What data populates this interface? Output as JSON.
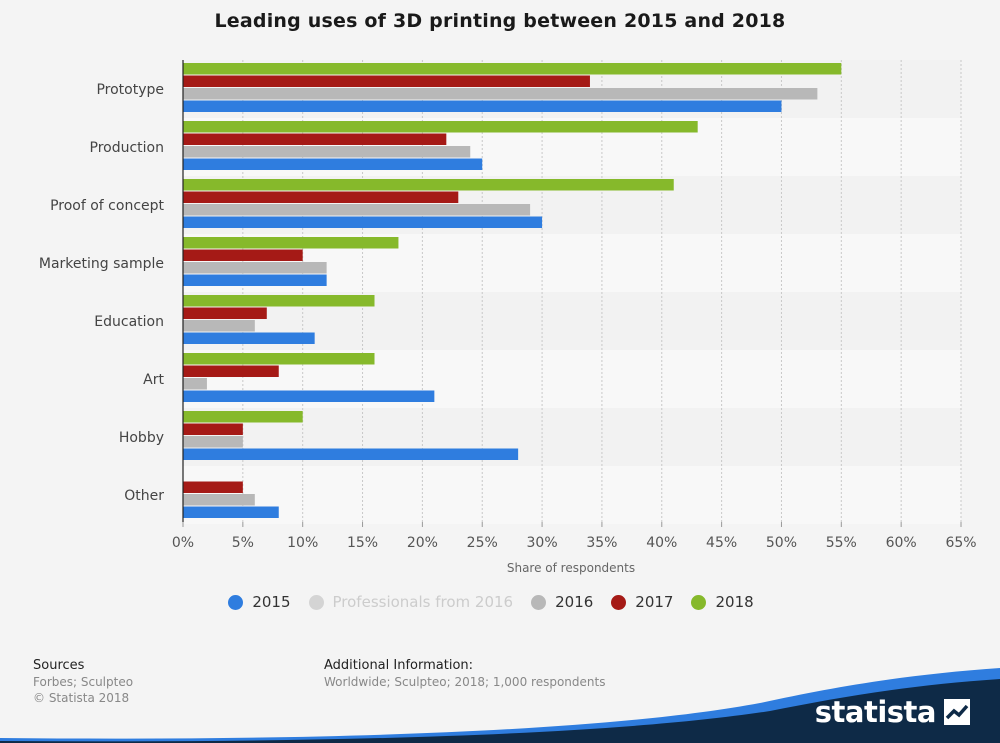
{
  "title": "Leading uses of 3D printing between 2015 and 2018",
  "legend": [
    {
      "label": "2015",
      "color": "#2f7ddf",
      "disabled": false
    },
    {
      "label": "Professionals from 2016",
      "color": "#d4d4d4",
      "disabled": true
    },
    {
      "label": "2016",
      "color": "#b8b8b8",
      "disabled": false
    },
    {
      "label": "2017",
      "color": "#a51a16",
      "disabled": false
    },
    {
      "label": "2018",
      "color": "#86b92b",
      "disabled": false
    }
  ],
  "footer": {
    "sources_heading": "Sources",
    "sources_text": "Forbes; Sculpteo",
    "copyright": "© Statista 2018",
    "info_heading": "Additional Information:",
    "info_text": "Worldwide; Sculpteo; 2018; 1,000 respondents"
  },
  "brand": {
    "name": "statista",
    "band_color": "#0e2a47",
    "accent_color": "#2f7ddf"
  },
  "chart_data": {
    "type": "bar",
    "orientation": "horizontal",
    "categories": [
      "Prototype",
      "Production",
      "Proof of concept",
      "Marketing sample",
      "Education",
      "Art",
      "Hobby",
      "Other"
    ],
    "series": [
      {
        "name": "2018",
        "color": "#86b92b",
        "values": [
          55,
          43,
          41,
          18,
          16,
          16,
          10,
          0
        ]
      },
      {
        "name": "2017",
        "color": "#a51a16",
        "values": [
          34,
          22,
          23,
          10,
          7,
          8,
          5,
          5
        ]
      },
      {
        "name": "2016",
        "color": "#b8b8b8",
        "values": [
          53,
          24,
          29,
          12,
          6,
          2,
          5,
          6
        ]
      },
      {
        "name": "2015",
        "color": "#2f7ddf",
        "values": [
          50,
          25,
          30,
          12,
          11,
          21,
          28,
          8
        ]
      }
    ],
    "x_ticks": [
      "0%",
      "5%",
      "10%",
      "15%",
      "20%",
      "25%",
      "30%",
      "35%",
      "40%",
      "45%",
      "50%",
      "55%",
      "60%",
      "65%"
    ],
    "xlim": [
      0,
      65
    ],
    "xlabel": "Share of respondents",
    "grid": true
  }
}
